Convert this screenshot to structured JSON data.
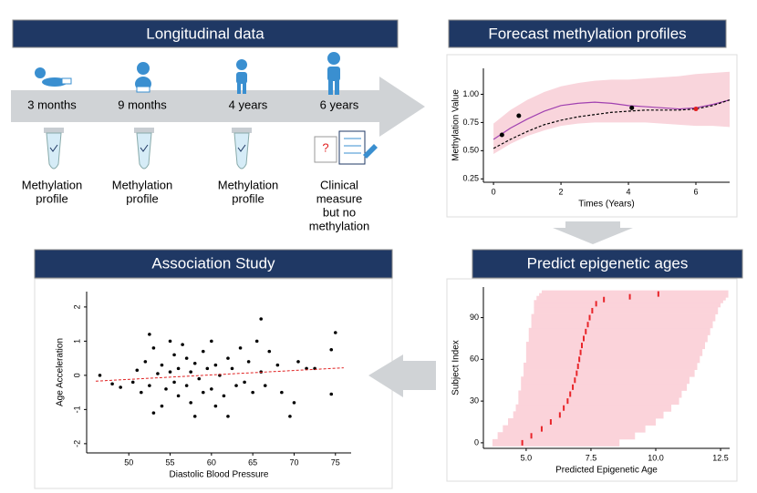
{
  "headers": [
    "Longitudinal data",
    "Forecast methylation profiles",
    "Association Study",
    "Predict epigenetic ages"
  ],
  "timeline": {
    "points": [
      "3 months",
      "9 months",
      "4 years",
      "6 years"
    ],
    "captions": [
      [
        "Methylation",
        "profile"
      ],
      [
        "Methylation",
        "profile"
      ],
      [
        "Methylation",
        "profile"
      ],
      [
        "Clinical",
        "measure",
        "but no",
        "methylation"
      ]
    ]
  },
  "chart_data": [
    {
      "type": "line",
      "xlabel": "Times (Years)",
      "ylabel": "Methylation Value",
      "x": [
        0,
        0.5,
        1,
        1.5,
        2,
        2.5,
        3,
        3.5,
        4,
        4.5,
        5,
        5.5,
        6,
        6.5,
        7
      ],
      "band": {
        "color": "#f9d5dc",
        "lower": [
          0.47,
          0.56,
          0.63,
          0.68,
          0.72,
          0.74,
          0.75,
          0.75,
          0.75,
          0.75,
          0.74,
          0.73,
          0.72,
          0.72,
          0.71
        ],
        "upper": [
          0.74,
          0.86,
          0.95,
          1.02,
          1.07,
          1.1,
          1.12,
          1.13,
          1.13,
          1.14,
          1.15,
          1.16,
          1.18,
          1.19,
          1.2
        ]
      },
      "series": [
        {
          "color": "#a040b0",
          "dashed": false,
          "values": [
            0.6,
            0.7,
            0.78,
            0.85,
            0.9,
            0.92,
            0.93,
            0.92,
            0.9,
            0.89,
            0.88,
            0.87,
            0.88,
            0.91,
            0.95
          ]
        },
        {
          "color": "#000000",
          "dashed": true,
          "values": [
            0.52,
            0.6,
            0.67,
            0.73,
            0.77,
            0.8,
            0.82,
            0.84,
            0.85,
            0.86,
            0.86,
            0.86,
            0.87,
            0.9,
            0.95
          ]
        }
      ],
      "points": {
        "x": [
          0.25,
          0.75,
          4.1,
          6.0
        ],
        "values": [
          0.64,
          0.81,
          0.88,
          0.87
        ],
        "colors": [
          "#000000",
          "#000000",
          "#000000",
          "#e02020"
        ]
      },
      "xlim": [
        -0.3,
        7
      ],
      "ylim": [
        0.22,
        1.23
      ],
      "xticks": [
        0,
        2,
        4,
        6
      ],
      "yticks": [
        0.25,
        {
          "value": 0.5,
          "label": "0.50"
        },
        0.75,
        {
          "value": 1,
          "label": "1.00"
        }
      ]
    },
    {
      "type": "interval",
      "xlabel": "Predicted Epigenetic Age",
      "ylabel": "Subject Index",
      "color": "#e8252a",
      "band_color": "#fbd3da",
      "values": [
        0,
        5,
        10,
        15,
        20,
        25,
        30,
        35,
        40,
        45,
        50,
        55,
        60,
        65,
        70,
        75,
        80,
        85,
        90,
        95,
        100,
        103,
        105,
        107
      ],
      "x": [
        4.85,
        5.2,
        5.6,
        5.95,
        6.3,
        6.45,
        6.6,
        6.7,
        6.8,
        6.88,
        6.95,
        7.0,
        7.05,
        7.1,
        7.15,
        7.22,
        7.3,
        7.38,
        7.45,
        7.55,
        7.7,
        8.0,
        9.0,
        10.1
      ],
      "lower": [
        3.7,
        3.9,
        4.1,
        4.3,
        4.5,
        4.6,
        4.7,
        4.7,
        4.8,
        4.8,
        4.9,
        4.9,
        5.0,
        5.0,
        5.0,
        5.1,
        5.1,
        5.2,
        5.2,
        5.3,
        5.3,
        5.4,
        5.5,
        5.6
      ],
      "upper": [
        8.6,
        9.2,
        9.6,
        10.0,
        10.3,
        10.6,
        10.9,
        11.0,
        11.2,
        11.3,
        11.5,
        11.6,
        11.7,
        11.8,
        11.9,
        12.0,
        12.1,
        12.2,
        12.3,
        12.4,
        12.5,
        12.6,
        12.7,
        12.8
      ],
      "xlim": [
        3.35,
        12.85
      ],
      "ylim": [
        -4,
        112
      ],
      "xticks": [
        {
          "value": 5,
          "label": "5.0"
        },
        7.5,
        {
          "value": 10,
          "label": "10.0"
        },
        12.5
      ],
      "yticks": [
        0,
        30,
        60,
        90
      ]
    },
    {
      "type": "scatter",
      "xlabel": "Diastolic Blood Pressure",
      "ylabel": "Age Acceleration",
      "color": "#000000",
      "trend": {
        "color": "#e02020",
        "x": [
          46,
          76
        ],
        "values": [
          -0.17,
          0.22
        ]
      },
      "x": [
        46.5,
        48,
        49,
        50.5,
        51,
        51.5,
        52,
        52.5,
        52.5,
        53,
        53,
        53.5,
        54,
        54,
        54.5,
        55,
        55,
        55.5,
        55.5,
        56,
        56,
        56.5,
        57,
        57,
        57.5,
        57.5,
        58,
        58,
        58.5,
        59,
        59,
        59.5,
        60,
        60,
        60.5,
        60.5,
        61,
        61.5,
        62,
        62,
        62.5,
        63,
        63.5,
        64,
        64.5,
        65,
        65.5,
        66,
        66,
        66.5,
        67,
        68,
        68.5,
        69.5,
        70,
        70.5,
        71.5,
        72.5,
        74.5,
        74.5,
        75
      ],
      "values": [
        0,
        -0.25,
        -0.35,
        -0.2,
        0.15,
        -0.5,
        0.4,
        1.2,
        -0.3,
        -1.1,
        0.8,
        0.05,
        -0.9,
        0.3,
        -0.4,
        0.1,
        1.0,
        -0.2,
        0.6,
        -0.6,
        0.2,
        0.9,
        -0.3,
        0.5,
        -0.8,
        0.1,
        -1.2,
        0.35,
        -0.1,
        0.7,
        -0.5,
        0.2,
        -0.4,
        1.0,
        -0.9,
        0.3,
        0.0,
        -0.6,
        0.5,
        -1.2,
        0.2,
        -0.3,
        0.8,
        -0.2,
        0.4,
        -0.5,
        1.0,
        1.65,
        0.1,
        -0.3,
        0.7,
        0.3,
        -0.5,
        -1.2,
        -0.8,
        0.4,
        0.2,
        0.2,
        0.75,
        -0.55,
        1.25
      ],
      "xlim": [
        44.9,
        76.9
      ],
      "ylim": [
        -2.27,
        2.45
      ],
      "xticks": [
        50,
        55,
        60,
        65,
        70,
        75
      ],
      "yticks": [
        -2,
        -1,
        0,
        1,
        2
      ]
    }
  ]
}
